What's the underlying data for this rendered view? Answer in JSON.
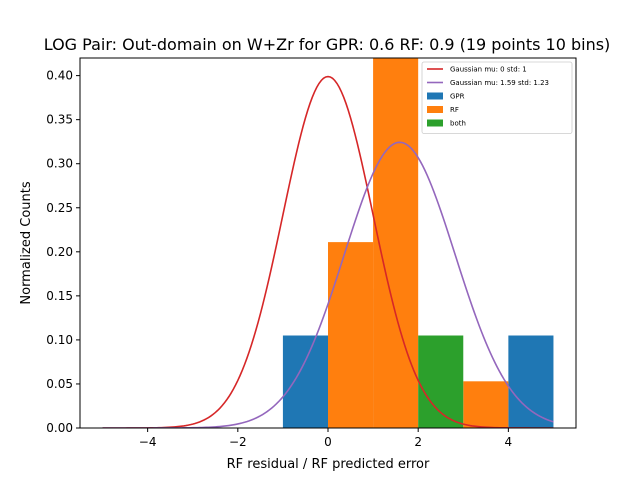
{
  "chart_data": {
    "type": "bar",
    "title": "LOG Pair: Out-domain on W+Zr for GPR: 0.6 RF: 0.9 (19 points 10 bins)",
    "xlabel": "RF residual / RF predicted error",
    "ylabel": "Normalized Counts",
    "xlim": [
      -5.5,
      5.5
    ],
    "ylim": [
      0,
      0.42
    ],
    "xticks": [
      -4,
      -2,
      0,
      2,
      4
    ],
    "xtick_labels": [
      "−4",
      "−2",
      "0",
      "2",
      "4"
    ],
    "yticks": [
      0.0,
      0.05,
      0.1,
      0.15,
      0.2,
      0.25,
      0.3,
      0.35,
      0.4
    ],
    "ytick_labels": [
      "0.00",
      "0.05",
      "0.10",
      "0.15",
      "0.20",
      "0.25",
      "0.30",
      "0.35",
      "0.40"
    ],
    "grid": false,
    "legend_position": "top-right",
    "bin_edges": [
      -1,
      0,
      1,
      2,
      3,
      4,
      5
    ],
    "series": [
      {
        "name": "GPR",
        "kind": "bar",
        "color": "#1f77b4",
        "values": [
          0.105,
          0.158,
          0.0,
          0.0,
          0.0,
          0.105
        ]
      },
      {
        "name": "RF",
        "kind": "bar",
        "color": "#ff7f0e",
        "values": [
          0.0,
          0.211,
          0.421,
          0.0,
          0.053,
          0.0
        ]
      },
      {
        "name": "both",
        "kind": "bar",
        "color": "#2ca02c",
        "values": [
          0.0,
          0.0,
          0.0,
          0.105,
          0.0,
          0.0
        ]
      },
      {
        "name": "Gaussian mu: 0 std: 1",
        "kind": "gaussian",
        "color": "#d62728",
        "mu": 0,
        "std": 1,
        "x_range": [
          -5,
          5
        ]
      },
      {
        "name": "Gaussian mu: 1.59 std: 1.23",
        "kind": "gaussian",
        "color": "#9467bd",
        "mu": 1.59,
        "std": 1.23,
        "x_range": [
          -5,
          5
        ]
      }
    ],
    "legend_order": [
      "Gaussian mu: 0 std: 1",
      "Gaussian mu: 1.59 std: 1.23",
      "GPR",
      "RF",
      "both"
    ]
  }
}
